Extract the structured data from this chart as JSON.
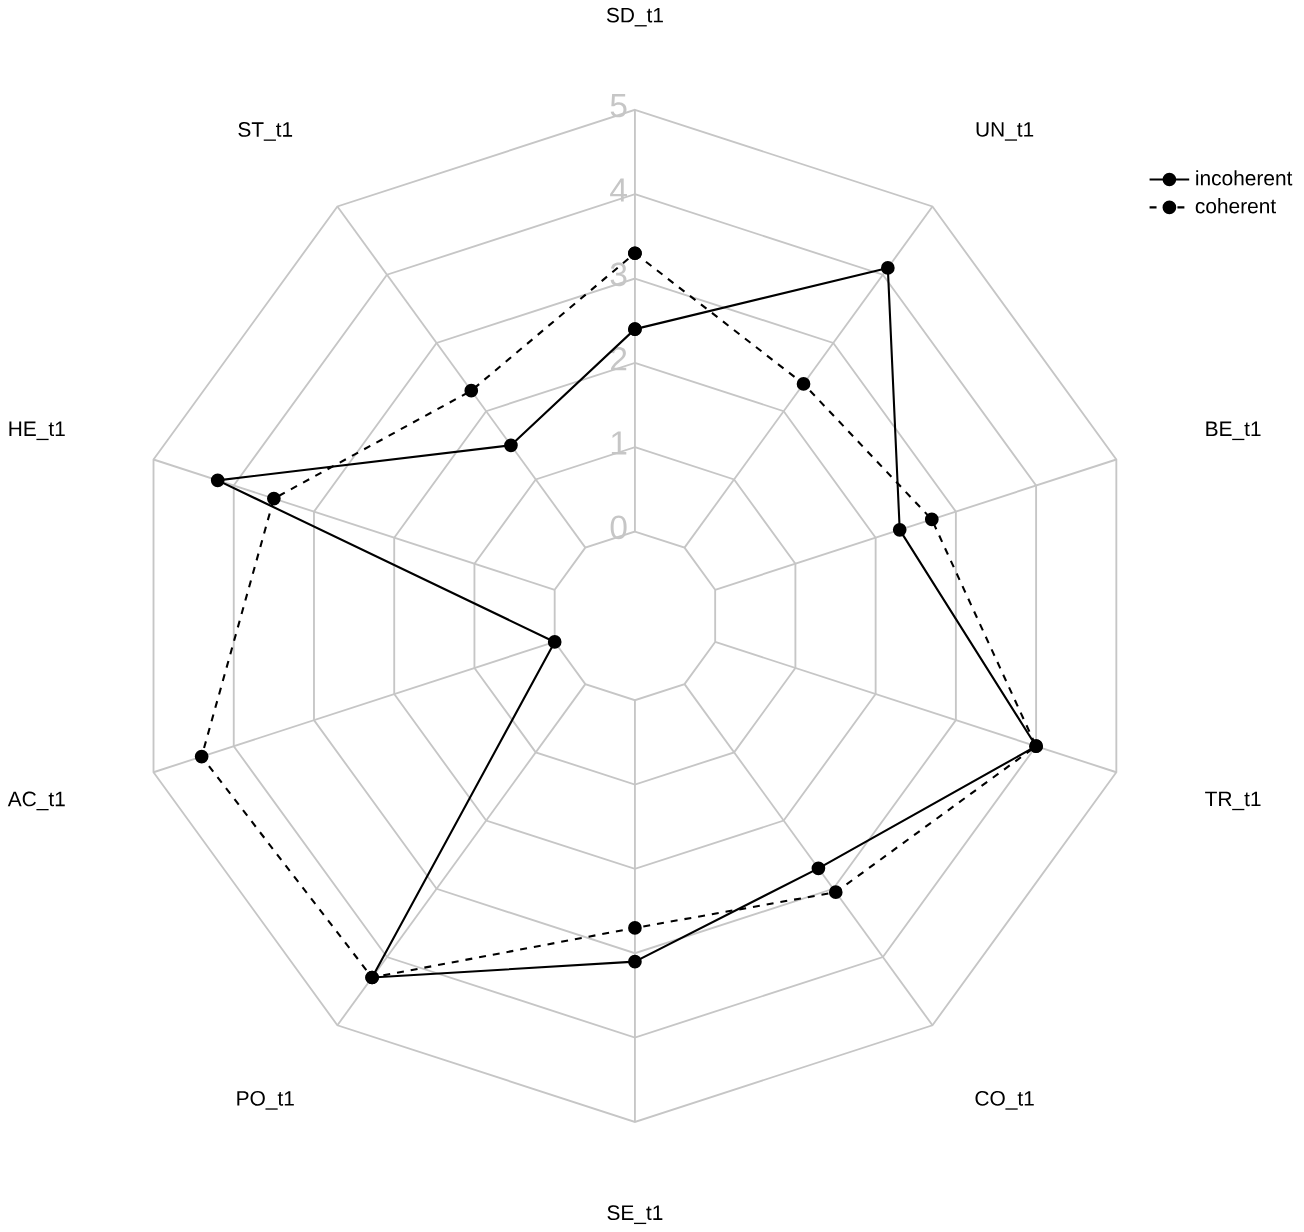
{
  "chart_data": {
    "type": "radar",
    "categories": [
      "SD_t1",
      "UN_t1",
      "BE_t1",
      "TR_t1",
      "CO_t1",
      "SE_t1",
      "PO_t1",
      "AC_t1",
      "HE_t1",
      "ST_t1"
    ],
    "series": [
      {
        "name": "incoherent",
        "color": "#000000",
        "line_style": "solid",
        "values": [
          2.4,
          4.1,
          2.3,
          4.0,
          2.7,
          3.1,
          4.3,
          0,
          4.2,
          1.5
        ]
      },
      {
        "name": "coherent",
        "color": "#000000",
        "line_style": "dashed",
        "values": [
          3.3,
          2.4,
          2.7,
          4.0,
          3.05,
          2.7,
          4.3,
          4.4,
          3.5,
          2.3
        ]
      }
    ],
    "ylim": [
      -1,
      5
    ],
    "yticks": [
      0,
      1,
      2,
      3,
      4,
      5
    ],
    "grid": true,
    "legend": "top right",
    "marker": "circle"
  }
}
